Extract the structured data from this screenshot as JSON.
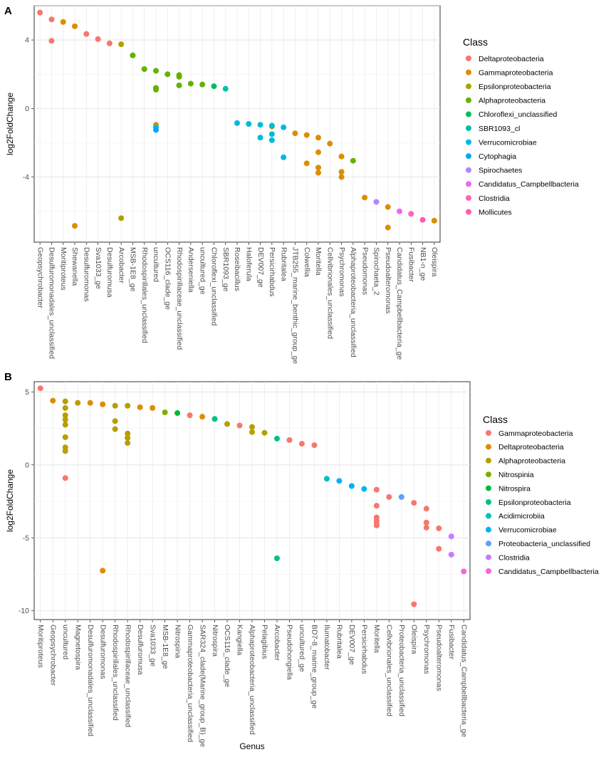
{
  "chart_data": [
    {
      "panel": "A",
      "type": "scatter",
      "ylabel": "log2FoldChange",
      "xlabel": "",
      "ylim": [
        -7.8,
        6.0
      ],
      "yticks": [
        -4,
        0,
        4
      ],
      "grid": true,
      "legend": {
        "title": "Class",
        "placement": "right",
        "entries": [
          {
            "name": "Deltaproteobacteria",
            "color": "#F8766D"
          },
          {
            "name": "Gammaproteobacteria",
            "color": "#DB8E00"
          },
          {
            "name": "Epsilonproteobacteria",
            "color": "#AEA200"
          },
          {
            "name": "Alphaproteobacteria",
            "color": "#64B200"
          },
          {
            "name": "Chloroflexi_unclassified",
            "color": "#00BD5C"
          },
          {
            "name": "SBR1093_cl",
            "color": "#00C1A7"
          },
          {
            "name": "Verrucomicrobiae",
            "color": "#00BADE"
          },
          {
            "name": "Cytophagia",
            "color": "#00A6FF"
          },
          {
            "name": "Spirochaetes",
            "color": "#B385FF"
          },
          {
            "name": "Candidatus_Campbellbacteria",
            "color": "#EF67EB"
          },
          {
            "name": "Clostridia",
            "color": "#FF63B6"
          },
          {
            "name": "Mollicutes",
            "color": "#FF5CA8"
          }
        ]
      },
      "categories": [
        "Geopsychrobacter",
        "Desulfuromonadales_unclassified",
        "Moritiproteus",
        "Shewanella",
        "Desulfuromonas",
        "Sva1033_ge",
        "Desulfuromusa",
        "Arcobacter",
        "MSB-1E8_ge",
        "Rhodospirillales_unclassified",
        "uncultured",
        "OCS116_clade_ge",
        "Rhodospirillaceae_unclassified",
        "Anderseniella",
        "uncultured_ge",
        "Chloroflexi_unclassified",
        "SBR1093_ge",
        "Roseibacillus",
        "Haloferula",
        "DEV007_ge",
        "Persicirhabdus",
        "Rubritalea",
        "JTB255_marine_benthic_group_ge",
        "Colwellia",
        "Moritella",
        "Cellvibrionales_unclassified",
        "Psychromonas",
        "Alphaproteobacteria_unclassified",
        "Pseudomonas",
        "Spirochaeta_2",
        "Pseudoalteromonas",
        "Candidatus_Campbellbacteria_ge",
        "Fusibacter",
        "NB1-n_ge",
        "Oleispira"
      ],
      "series": [
        {
          "name": "Deltaproteobacteria",
          "points": [
            [
              0,
              5.6
            ],
            [
              1,
              5.2
            ],
            [
              1,
              3.95
            ],
            [
              4,
              4.35
            ],
            [
              5,
              4.05
            ],
            [
              6,
              3.8
            ]
          ]
        },
        {
          "name": "Gammaproteobacteria",
          "points": [
            [
              2,
              5.05
            ],
            [
              3,
              4.8
            ],
            [
              3,
              -6.85
            ],
            [
              10,
              -0.95
            ],
            [
              20,
              -1.05
            ],
            [
              22,
              -1.45
            ],
            [
              23,
              -1.55
            ],
            [
              23,
              -3.2
            ],
            [
              24,
              -1.7
            ],
            [
              24,
              -2.55
            ],
            [
              24,
              -3.45
            ],
            [
              24,
              -3.75
            ],
            [
              25,
              -2.05
            ],
            [
              26,
              -2.8
            ],
            [
              26,
              -3.7
            ],
            [
              26,
              -4.0
            ],
            [
              28,
              -5.2
            ],
            [
              30,
              -5.75
            ],
            [
              30,
              -6.95
            ],
            [
              34,
              -6.55
            ]
          ]
        },
        {
          "name": "Epsilonproteobacteria",
          "points": [
            [
              7,
              3.75
            ],
            [
              7,
              -6.4
            ]
          ]
        },
        {
          "name": "Alphaproteobacteria",
          "points": [
            [
              8,
              3.1
            ],
            [
              9,
              2.3
            ],
            [
              10,
              2.2
            ],
            [
              10,
              1.2
            ],
            [
              10,
              1.1
            ],
            [
              11,
              2.0
            ],
            [
              12,
              1.95
            ],
            [
              12,
              1.85
            ],
            [
              12,
              1.35
            ],
            [
              13,
              1.45
            ],
            [
              14,
              1.4
            ],
            [
              27,
              -3.05
            ]
          ]
        },
        {
          "name": "Chloroflexi_unclassified",
          "points": [
            [
              15,
              1.3
            ]
          ]
        },
        {
          "name": "SBR1093_cl",
          "points": [
            [
              16,
              1.15
            ]
          ]
        },
        {
          "name": "Verrucomicrobiae",
          "points": [
            [
              10,
              -1.1
            ],
            [
              17,
              -0.85
            ],
            [
              18,
              -0.9
            ],
            [
              19,
              -0.95
            ],
            [
              19,
              -1.7
            ],
            [
              20,
              -1.0
            ],
            [
              20,
              -1.5
            ],
            [
              20,
              -1.85
            ],
            [
              21,
              -1.1
            ],
            [
              21,
              -2.85
            ]
          ]
        },
        {
          "name": "Cytophagia",
          "points": [
            [
              10,
              -1.25
            ]
          ]
        },
        {
          "name": "Spirochaetes",
          "points": [
            [
              29,
              -5.45
            ]
          ]
        },
        {
          "name": "Candidatus_Campbellbacteria",
          "points": [
            [
              31,
              -6.0
            ]
          ]
        },
        {
          "name": "Clostridia",
          "points": [
            [
              32,
              -6.15
            ]
          ]
        },
        {
          "name": "Mollicutes",
          "points": [
            [
              33,
              -6.5
            ]
          ]
        }
      ]
    },
    {
      "panel": "B",
      "type": "scatter",
      "ylabel": "log2FoldChange",
      "xlabel": "Genus",
      "ylim": [
        -10.6,
        5.7
      ],
      "yticks": [
        -10,
        -5,
        0,
        5
      ],
      "grid": true,
      "legend": {
        "title": "Class",
        "placement": "right",
        "entries": [
          {
            "name": "Gammaproteobacteria",
            "color": "#F8766D"
          },
          {
            "name": "Deltaproteobacteria",
            "color": "#DE8C00"
          },
          {
            "name": "Alphaproteobacteria",
            "color": "#B79F00"
          },
          {
            "name": "Nitrospinia",
            "color": "#7CAE00"
          },
          {
            "name": "Nitrospira",
            "color": "#00BA38"
          },
          {
            "name": "Epsilonproteobacteria",
            "color": "#00C08B"
          },
          {
            "name": "Acidimicrobiia",
            "color": "#00BFC4"
          },
          {
            "name": "Verrucomicrobiae",
            "color": "#00B4F0"
          },
          {
            "name": "Proteobacteria_unclassified",
            "color": "#619CFF"
          },
          {
            "name": "Clostridia",
            "color": "#C77CFF"
          },
          {
            "name": "Candidatus_Campbellbacteria",
            "color": "#F564E3"
          }
        ]
      },
      "categories": [
        "Moritiproteus",
        "Geopsychrobacter",
        "uncultured",
        "Magnetospira",
        "Desulfuromonadales_unclassified",
        "Desulfuromonas",
        "Rhodospirillales_unclassified",
        "Rhodospirillaceae_unclassified",
        "Desulfuromusa",
        "Sva1033_ge",
        "MSB-1E8_ge",
        "Nitrospina",
        "Gammaproteobacteria_unclassified",
        "SAR324_clade(Marine_group_B)_ge",
        "Nitrospira",
        "OCS116_clade_ge",
        "Kangiella",
        "Alphaproteobacteria_unclassified",
        "Pelagibius",
        "Arcobacter",
        "Pseudohongiella",
        "uncultured_ge",
        "BD7-8_marine_group_ge",
        "Ilumatobacter",
        "Rubritalea",
        "DEV007_ge",
        "Persicirhabdus",
        "Moritella",
        "Cellvibrionales_unclassified",
        "Proteobacteria_unclassified",
        "Oleispira",
        "Psychromonas",
        "Pseudoalteromonas",
        "Fusibacter",
        "Candidatus_Campbellbacteria_ge"
      ],
      "series": [
        {
          "name": "Gammaproteobacteria",
          "points": [
            [
              0,
              5.25
            ],
            [
              2,
              -0.9
            ],
            [
              12,
              3.4
            ],
            [
              16,
              2.7
            ],
            [
              20,
              1.7
            ],
            [
              21,
              1.45
            ],
            [
              22,
              1.35
            ],
            [
              28,
              -2.2
            ],
            [
              27,
              -1.7
            ],
            [
              27,
              -2.8
            ],
            [
              27,
              -3.6
            ],
            [
              27,
              -3.8
            ],
            [
              27,
              -3.95
            ],
            [
              27,
              -4.15
            ],
            [
              30,
              -2.6
            ],
            [
              30,
              -9.55
            ],
            [
              31,
              -3.0
            ],
            [
              31,
              -3.95
            ],
            [
              31,
              -4.3
            ],
            [
              32,
              -4.35
            ],
            [
              32,
              -5.75
            ]
          ]
        },
        {
          "name": "Deltaproteobacteria",
          "points": [
            [
              1,
              4.4
            ],
            [
              4,
              4.25
            ],
            [
              5,
              4.15
            ],
            [
              5,
              -7.25
            ],
            [
              8,
              3.95
            ],
            [
              9,
              3.9
            ],
            [
              13,
              3.3
            ]
          ]
        },
        {
          "name": "Alphaproteobacteria",
          "points": [
            [
              2,
              4.35
            ],
            [
              2,
              3.9
            ],
            [
              2,
              3.4
            ],
            [
              2,
              3.1
            ],
            [
              2,
              2.75
            ],
            [
              2,
              1.9
            ],
            [
              2,
              1.2
            ],
            [
              2,
              0.95
            ],
            [
              3,
              4.25
            ],
            [
              6,
              4.05
            ],
            [
              6,
              3.0
            ],
            [
              6,
              2.45
            ],
            [
              7,
              4.05
            ],
            [
              7,
              2.15
            ],
            [
              7,
              1.85
            ],
            [
              7,
              1.5
            ],
            [
              15,
              2.8
            ],
            [
              17,
              2.6
            ],
            [
              17,
              2.25
            ],
            [
              18,
              2.2
            ]
          ]
        },
        {
          "name": "Nitrospinia",
          "points": [
            [
              10,
              3.6
            ]
          ]
        },
        {
          "name": "Nitrospira",
          "points": [
            [
              11,
              3.55
            ]
          ]
        },
        {
          "name": "Epsilonproteobacteria",
          "points": [
            [
              14,
              3.15
            ],
            [
              19,
              1.8
            ],
            [
              19,
              -6.4
            ]
          ]
        },
        {
          "name": "Acidimicrobiia",
          "points": [
            [
              23,
              -0.95
            ]
          ]
        },
        {
          "name": "Verrucomicrobiae",
          "points": [
            [
              24,
              -1.1
            ],
            [
              25,
              -1.45
            ],
            [
              26,
              -1.65
            ]
          ]
        },
        {
          "name": "Proteobacteria_unclassified",
          "points": [
            [
              29,
              -2.2
            ]
          ]
        },
        {
          "name": "Clostridia",
          "points": [
            [
              33,
              -4.9
            ],
            [
              33,
              -6.15
            ]
          ]
        },
        {
          "name": "Candidatus_Campbellbacteria",
          "points": [
            [
              34,
              -7.3
            ]
          ]
        }
      ]
    }
  ]
}
